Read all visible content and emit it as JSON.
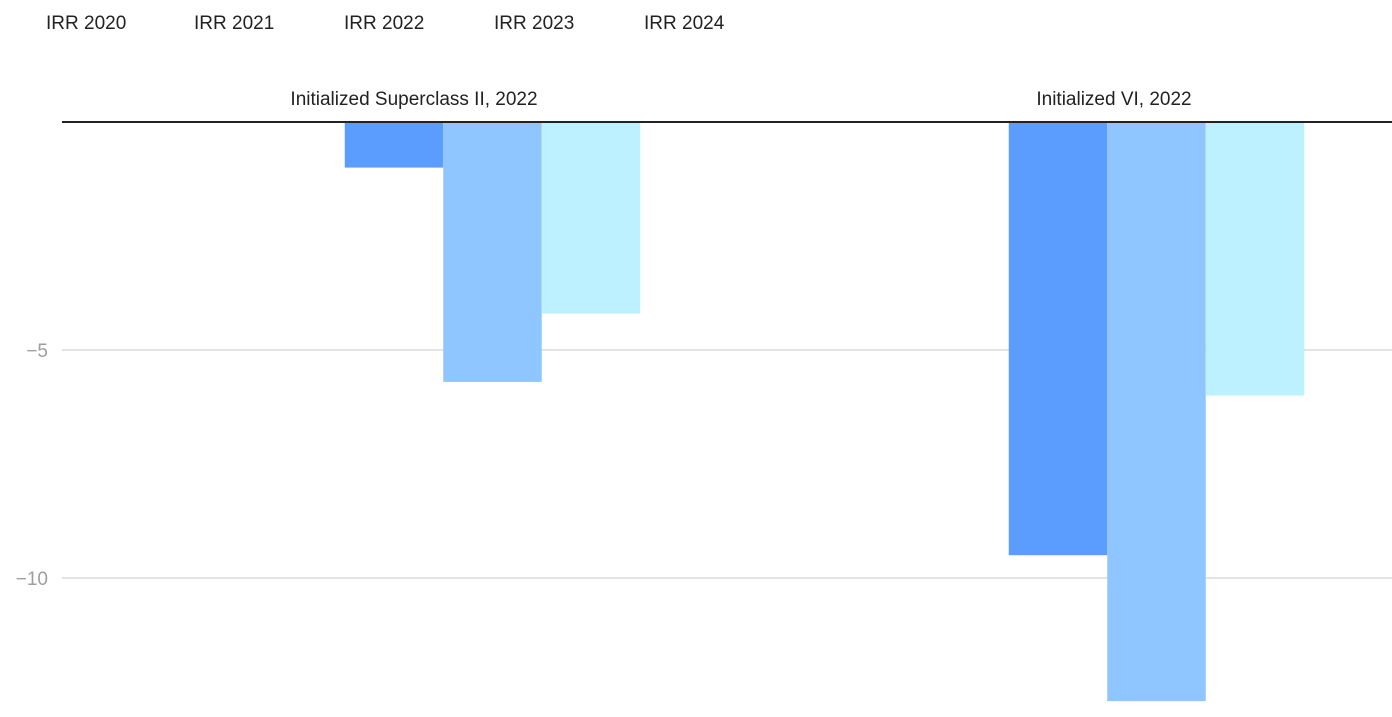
{
  "chart_data": {
    "type": "bar",
    "categories": [
      "Initialized Superclass II, 2022",
      "Initialized VI, 2022"
    ],
    "series": [
      {
        "name": "IRR 2020",
        "color": "#4285f4",
        "values": [
          null,
          null
        ]
      },
      {
        "name": "IRR 2021",
        "color": "#5b9dff",
        "values": [
          null,
          null
        ]
      },
      {
        "name": "IRR 2022",
        "color": "#5b9dff",
        "values": [
          -1.0,
          -9.5
        ]
      },
      {
        "name": "IRR 2023",
        "color": "#90c6ff",
        "values": [
          -5.7,
          -12.7
        ]
      },
      {
        "name": "IRR 2024",
        "color": "#bdf1ff",
        "values": [
          -4.2,
          -6.0
        ]
      }
    ],
    "yticks": [
      -5,
      -10
    ],
    "ytick_labels": [
      "−5",
      "−10"
    ],
    "ylim": [
      -12.7,
      0
    ],
    "title": "",
    "xlabel": "",
    "ylabel": "",
    "grid": true,
    "legend_position": "top-left",
    "axis_line_color": "#222222",
    "grid_color": "#e3e3e3"
  }
}
